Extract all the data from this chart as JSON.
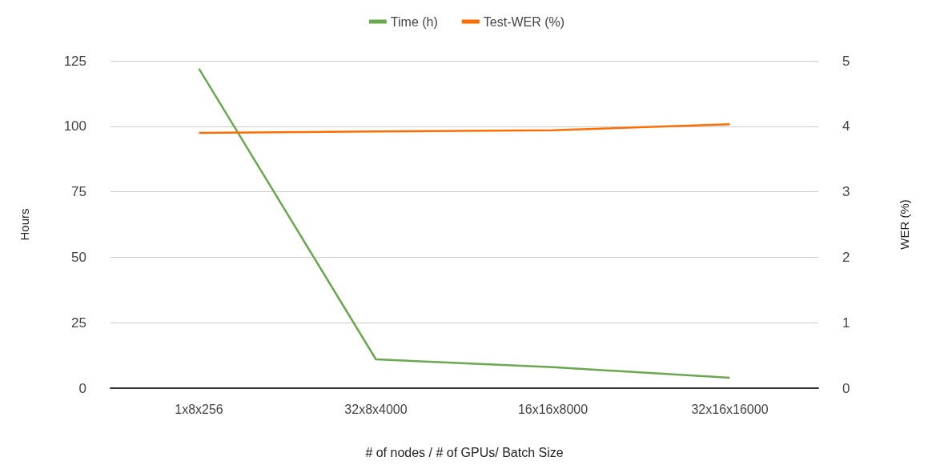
{
  "chart_data": {
    "type": "line",
    "xlabel": "# of nodes / # of GPUs/ Batch Size",
    "ylabel": "Hours",
    "y2label": "WER (%)",
    "categories": [
      "1x8x256",
      "32x8x4000",
      "16x16x8000",
      "32x16x16000"
    ],
    "series": [
      {
        "name": "Time (h)",
        "color": "#6aa84f",
        "values": [
          122,
          11,
          8,
          4
        ]
      },
      {
        "name": "Test-WER (%)",
        "color": "#ff6d01",
        "values": [
          3.9,
          3.92,
          3.94,
          4.03
        ],
        "axis": "y2"
      }
    ],
    "ylim": [
      0,
      125
    ],
    "yticks": [
      0,
      25,
      50,
      75,
      100,
      125
    ],
    "y2lim": [
      0,
      5
    ],
    "y2ticks": [
      0,
      1,
      2,
      3,
      4,
      5
    ],
    "grid": "y",
    "legend": "top",
    "marker": "none",
    "line_style": "solid"
  }
}
